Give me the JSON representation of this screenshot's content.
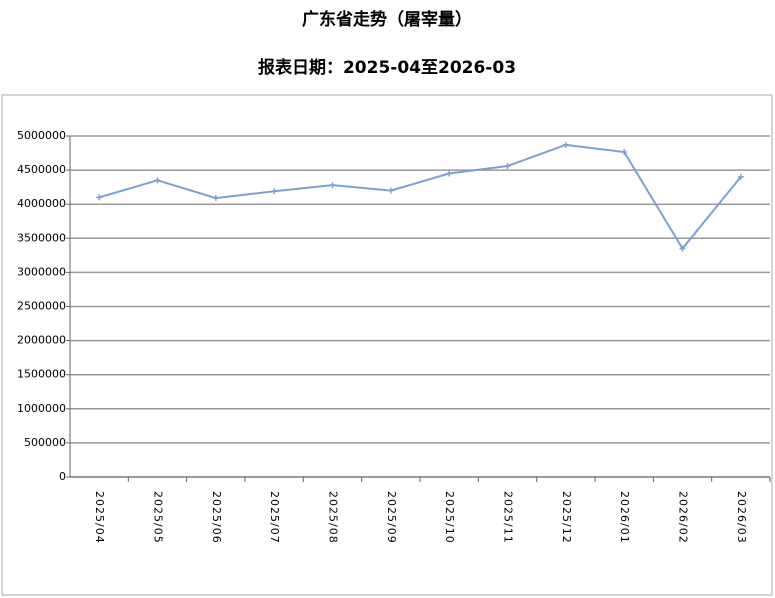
{
  "chart_data": {
    "type": "line",
    "title": "广东省走势（屠宰量）",
    "subtitle": "报表日期：2025-04至2026-03",
    "categories": [
      "2025/04",
      "2025/05",
      "2025/06",
      "2025/07",
      "2025/08",
      "2025/09",
      "2025/10",
      "2025/11",
      "2025/12",
      "2026/01",
      "2026/02",
      "2026/03"
    ],
    "series": [
      {
        "name": "屠宰量",
        "color": "#7ba0d2",
        "values": [
          4100000,
          4350000,
          4090000,
          4190000,
          4280000,
          4200000,
          4450000,
          4560000,
          4870000,
          4765000,
          3350000,
          4400000
        ]
      }
    ],
    "ylim": [
      0,
      5000000
    ],
    "yticks": [
      0,
      500000,
      1000000,
      1500000,
      2000000,
      2500000,
      3000000,
      3500000,
      4000000,
      4500000,
      5000000
    ],
    "grid": true
  }
}
